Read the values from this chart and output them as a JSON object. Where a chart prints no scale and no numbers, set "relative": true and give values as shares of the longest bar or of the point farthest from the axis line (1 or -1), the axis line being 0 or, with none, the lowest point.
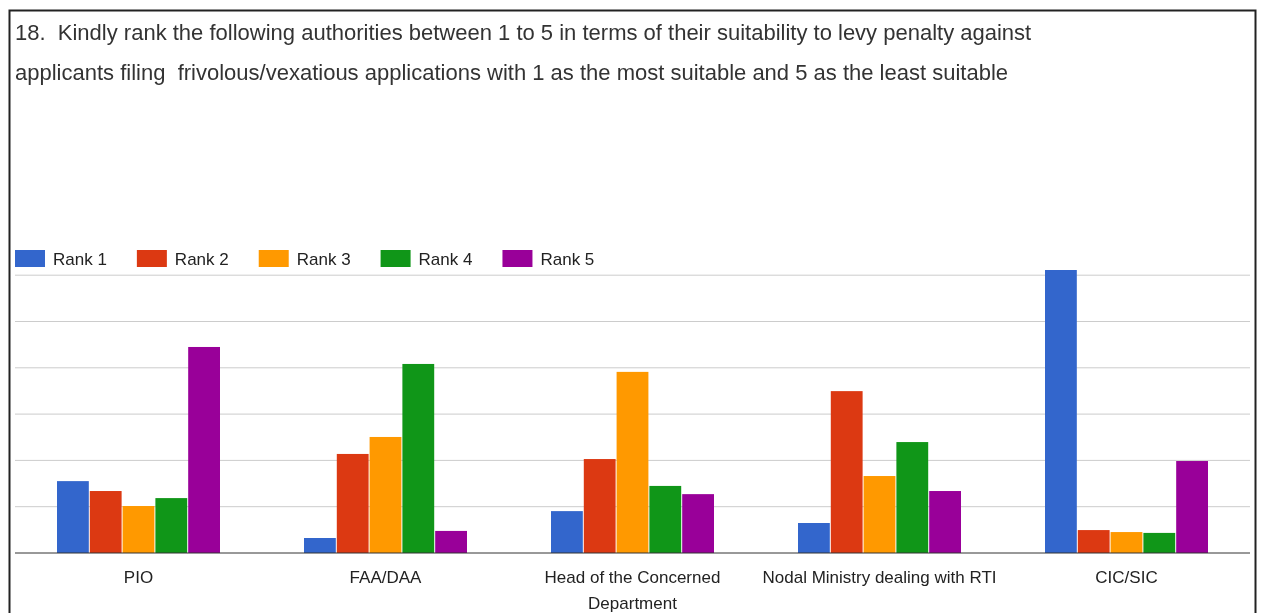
{
  "chart_data": {
    "type": "bar",
    "title": "18.  Kindly rank the following authorities between 1 to 5 in terms of their suitability to levy penalty against applicants filing  frivolous/vexatious applications with 1 as the most suitable and 5 as the least suitable",
    "categories": [
      "PIO",
      "FAA/DAA",
      "Head of the Concerned Department",
      "Nodal Ministry dealing with RTI",
      "CIC/SIC"
    ],
    "relative": true,
    "grid": true,
    "legend": "top left",
    "series": [
      {
        "name": "Rank 1",
        "color": "#3366cc",
        "values": [
          0.254,
          0.053,
          0.148,
          0.106,
          1
        ]
      },
      {
        "name": "Rank 2",
        "color": "#dc3912",
        "values": [
          0.219,
          0.35,
          0.332,
          0.572,
          0.081
        ]
      },
      {
        "name": "Rank 3",
        "color": "#ff9900",
        "values": [
          0.166,
          0.41,
          0.64,
          0.272,
          0.074
        ]
      },
      {
        "name": "Rank 4",
        "color": "#109618",
        "values": [
          0.194,
          0.668,
          0.237,
          0.392,
          0.071
        ]
      },
      {
        "name": "Rank 5",
        "color": "#990099",
        "values": [
          0.728,
          0.078,
          0.208,
          0.219,
          0.325
        ]
      }
    ]
  }
}
